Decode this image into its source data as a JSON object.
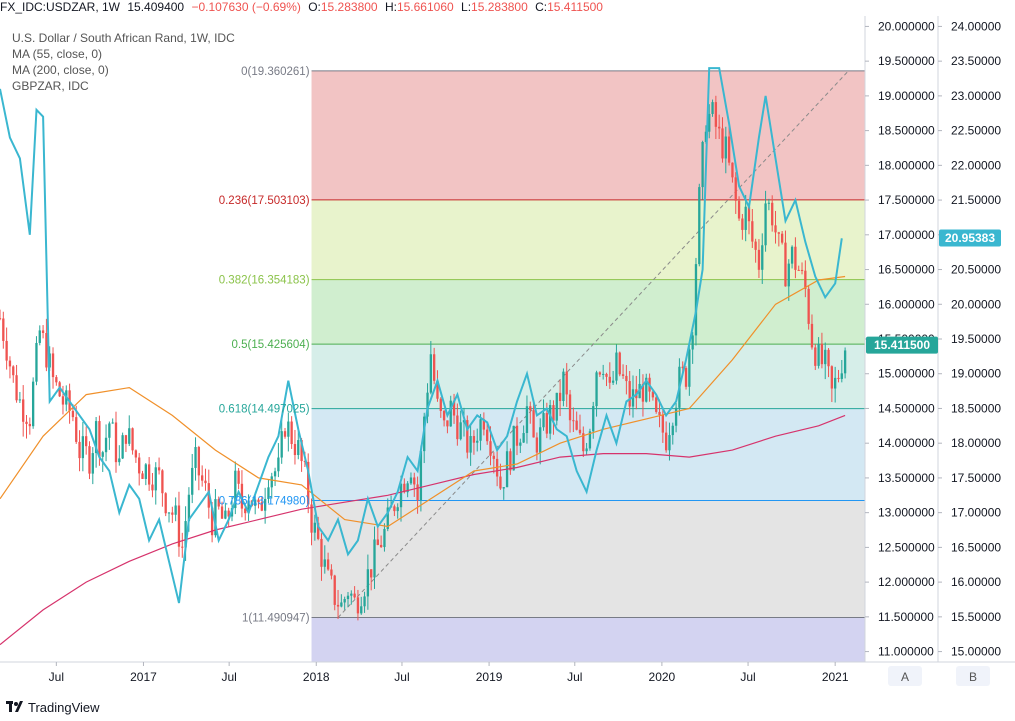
{
  "header": {
    "symbol": "FX_IDC:USDZAR, 1W",
    "last": "15.409400",
    "change": "−0.107630 (−0.69%)",
    "o_label": "O:",
    "o": "15.283800",
    "h_label": "H:",
    "h": "15.661060",
    "l_label": "L:",
    "l": "15.283800",
    "c_label": "C:",
    "c": "15.411500"
  },
  "legend": {
    "title": "U.S. Dollar / South African Rand, 1W, IDC",
    "ma55": "MA (55, close, 0)",
    "ma200": "MA (200, close, 0)",
    "compare": "GBPZAR, IDC"
  },
  "footer": {
    "brand": "TradingView"
  },
  "axis_buttons": {
    "a": "A",
    "b": "B"
  },
  "colors": {
    "up": "#26a69a",
    "down": "#ef5350",
    "ma55": "#f0902a",
    "ma200": "#d6336c",
    "compare": "#3ab7d0",
    "last_price_badge": "#26a69a",
    "compare_badge": "#3ab7d0"
  },
  "chart_data": {
    "type": "candlestick",
    "title": "U.S. Dollar / South African Rand, 1W, IDC",
    "x_ticks": [
      "Jul",
      "2017",
      "Jul",
      "2018",
      "Jul",
      "2019",
      "Jul",
      "2020",
      "Jul",
      "2021"
    ],
    "x_tick_dates": [
      "2016-07-01",
      "2017-01-01",
      "2017-07-01",
      "2018-01-01",
      "2018-07-01",
      "2019-01-01",
      "2019-07-01",
      "2020-01-01",
      "2020-07-01",
      "2021-01-01"
    ],
    "y_left_ticks": [
      "20.000000",
      "19.500000",
      "19.000000",
      "18.500000",
      "18.000000",
      "17.500000",
      "17.000000",
      "16.500000",
      "16.000000",
      "15.500000",
      "15.000000",
      "14.500000",
      "14.000000",
      "13.500000",
      "13.000000",
      "12.500000",
      "12.000000",
      "11.500000",
      "11.000000"
    ],
    "y_right_ticks": [
      "24.00000",
      "23.50000",
      "23.00000",
      "22.50000",
      "22.00000",
      "21.50000",
      "21.00000",
      "20.50000",
      "20.00000",
      "19.50000",
      "19.00000",
      "18.50000",
      "18.00000",
      "17.50000",
      "17.00000",
      "16.50000",
      "16.00000",
      "15.50000",
      "15.00000"
    ],
    "ylim_left": [
      10.85,
      20.15
    ],
    "ylim_right": [
      14.85,
      24.15
    ],
    "last_price_badge": "15.411500",
    "compare_badge": "20.95383",
    "fibonacci": [
      {
        "label": "0(19.360261)",
        "value": 19.360261,
        "line": "#787b86",
        "fill": "#f2c4c4"
      },
      {
        "label": "0.236(17.503103)",
        "value": 17.503103,
        "line": "#c62828",
        "fill": "#e8f3cc"
      },
      {
        "label": "0.382(16.354183)",
        "value": 16.354183,
        "line": "#8bc34a",
        "fill": "#d0eecf"
      },
      {
        "label": "0.5(15.425604)",
        "value": 15.425604,
        "line": "#4caf50",
        "fill": "#d6eee9"
      },
      {
        "label": "0.618(14.497025)",
        "value": 14.497025,
        "line": "#26a69a",
        "fill": "#d3e8f3"
      },
      {
        "label": "0.786(13.174980)",
        "value": 13.17498,
        "line": "#2196f3",
        "fill": "#e4e4e4"
      },
      {
        "label": "1(11.490947)",
        "value": 11.490947,
        "line": "#787b86",
        "fill": "#d3d3f1"
      }
    ],
    "fib_start_date": "2017-12-22",
    "trend_line": {
      "from": [
        "2018-02-16",
        11.49
      ],
      "to": [
        "2021-01-29",
        19.36
      ]
    },
    "usdzar_path": [
      [
        "2016-03-04",
        15.8
      ],
      [
        "2016-03-18",
        15.4
      ],
      [
        "2016-04-01",
        14.9
      ],
      [
        "2016-04-15",
        14.6
      ],
      [
        "2016-05-06",
        14.4
      ],
      [
        "2016-05-27",
        15.6
      ],
      [
        "2016-06-10",
        15.3
      ],
      [
        "2016-06-24",
        14.9
      ],
      [
        "2016-07-15",
        14.6
      ],
      [
        "2016-08-05",
        14.4
      ],
      [
        "2016-08-19",
        13.9
      ],
      [
        "2016-09-09",
        13.8
      ],
      [
        "2016-09-23",
        14.2
      ],
      [
        "2016-10-07",
        13.9
      ],
      [
        "2016-10-21",
        14.3
      ],
      [
        "2016-11-11",
        13.7
      ],
      [
        "2016-11-25",
        14.2
      ],
      [
        "2016-12-09",
        13.9
      ],
      [
        "2016-12-23",
        13.7
      ],
      [
        "2017-01-13",
        13.6
      ],
      [
        "2017-02-03",
        13.5
      ],
      [
        "2017-02-17",
        13.2
      ],
      [
        "2017-03-10",
        12.9
      ],
      [
        "2017-03-24",
        12.5
      ],
      [
        "2017-04-07",
        13.3
      ],
      [
        "2017-04-21",
        13.7
      ],
      [
        "2017-05-12",
        13.3
      ],
      [
        "2017-05-26",
        12.9
      ],
      [
        "2017-06-09",
        13.0
      ],
      [
        "2017-06-23",
        12.8
      ],
      [
        "2017-07-14",
        13.4
      ],
      [
        "2017-07-28",
        13.1
      ],
      [
        "2017-08-11",
        13.3
      ],
      [
        "2017-09-01",
        12.95
      ],
      [
        "2017-09-22",
        13.6
      ],
      [
        "2017-10-13",
        13.6
      ],
      [
        "2017-10-27",
        14.3
      ],
      [
        "2017-11-10",
        14.1
      ],
      [
        "2017-11-24",
        13.9
      ],
      [
        "2017-12-08",
        13.5
      ],
      [
        "2017-12-22",
        12.9
      ],
      [
        "2018-01-12",
        12.4
      ],
      [
        "2018-01-26",
        12.0
      ],
      [
        "2018-02-09",
        11.8
      ],
      [
        "2018-02-23",
        11.65
      ],
      [
        "2018-03-09",
        11.9
      ],
      [
        "2018-03-23",
        11.7
      ],
      [
        "2018-04-06",
        11.9
      ],
      [
        "2018-04-20",
        12.1
      ],
      [
        "2018-05-11",
        12.5
      ],
      [
        "2018-05-25",
        12.7
      ],
      [
        "2018-06-08",
        13.0
      ],
      [
        "2018-06-22",
        13.3
      ],
      [
        "2018-07-06",
        13.5
      ],
      [
        "2018-07-20",
        13.7
      ],
      [
        "2018-08-03",
        13.2
      ],
      [
        "2018-08-17",
        14.4
      ],
      [
        "2018-08-31",
        15.3
      ],
      [
        "2018-09-14",
        14.5
      ],
      [
        "2018-09-28",
        14.2
      ],
      [
        "2018-10-12",
        14.5
      ],
      [
        "2018-10-26",
        14.3
      ],
      [
        "2018-11-09",
        14.1
      ],
      [
        "2018-11-23",
        13.9
      ],
      [
        "2018-12-07",
        14.2
      ],
      [
        "2018-12-21",
        14.4
      ],
      [
        "2019-01-11",
        13.9
      ],
      [
        "2019-01-25",
        13.4
      ],
      [
        "2019-02-08",
        13.7
      ],
      [
        "2019-02-22",
        14.0
      ],
      [
        "2019-03-08",
        14.2
      ],
      [
        "2019-03-22",
        14.5
      ],
      [
        "2019-04-05",
        14.0
      ],
      [
        "2019-04-19",
        14.1
      ],
      [
        "2019-05-10",
        14.4
      ],
      [
        "2019-05-24",
        14.5
      ],
      [
        "2019-06-07",
        14.9
      ],
      [
        "2019-06-21",
        14.3
      ],
      [
        "2019-07-05",
        14.1
      ],
      [
        "2019-07-19",
        13.9
      ],
      [
        "2019-08-02",
        14.3
      ],
      [
        "2019-08-16",
        15.1
      ],
      [
        "2019-08-30",
        15.2
      ],
      [
        "2019-09-13",
        14.7
      ],
      [
        "2019-09-27",
        15.1
      ],
      [
        "2019-10-11",
        14.9
      ],
      [
        "2019-10-25",
        14.6
      ],
      [
        "2019-11-08",
        14.7
      ],
      [
        "2019-11-22",
        14.8
      ],
      [
        "2019-12-06",
        14.6
      ],
      [
        "2019-12-20",
        14.3
      ],
      [
        "2020-01-10",
        14.1
      ],
      [
        "2020-01-24",
        14.5
      ],
      [
        "2020-02-07",
        14.9
      ],
      [
        "2020-02-21",
        15.0
      ],
      [
        "2020-03-06",
        15.8
      ],
      [
        "2020-03-20",
        17.5
      ],
      [
        "2020-04-03",
        18.7
      ],
      [
        "2020-04-17",
        18.7
      ],
      [
        "2020-05-01",
        18.4
      ],
      [
        "2020-05-15",
        18.2
      ],
      [
        "2020-05-29",
        17.7
      ],
      [
        "2020-06-12",
        17.2
      ],
      [
        "2020-06-26",
        17.3
      ],
      [
        "2020-07-10",
        16.9
      ],
      [
        "2020-07-24",
        16.6
      ],
      [
        "2020-08-07",
        17.5
      ],
      [
        "2020-08-21",
        17.3
      ],
      [
        "2020-09-04",
        16.8
      ],
      [
        "2020-09-18",
        16.5
      ],
      [
        "2020-10-02",
        16.7
      ],
      [
        "2020-10-16",
        16.5
      ],
      [
        "2020-10-30",
        16.2
      ],
      [
        "2020-11-13",
        15.5
      ],
      [
        "2020-11-27",
        15.2
      ],
      [
        "2020-12-11",
        15.1
      ],
      [
        "2020-12-25",
        14.7
      ],
      [
        "2021-01-08",
        15.0
      ],
      [
        "2021-01-22",
        15.41
      ]
    ],
    "series": [
      {
        "name": "MA (55, close, 0)",
        "values": [
          [
            "2016-03-04",
            13.2
          ],
          [
            "2016-06-03",
            14.1
          ],
          [
            "2016-09-02",
            14.7
          ],
          [
            "2016-12-02",
            14.8
          ],
          [
            "2017-03-03",
            14.4
          ],
          [
            "2017-06-02",
            13.9
          ],
          [
            "2017-09-01",
            13.5
          ],
          [
            "2017-12-01",
            13.4
          ],
          [
            "2018-03-02",
            12.9
          ],
          [
            "2018-06-01",
            12.8
          ],
          [
            "2018-08-31",
            13.2
          ],
          [
            "2018-11-30",
            13.6
          ],
          [
            "2019-03-01",
            13.7
          ],
          [
            "2019-05-31",
            14.0
          ],
          [
            "2019-08-30",
            14.2
          ],
          [
            "2019-11-29",
            14.35
          ],
          [
            "2020-02-28",
            14.5
          ],
          [
            "2020-05-29",
            15.2
          ],
          [
            "2020-08-28",
            16.0
          ],
          [
            "2020-11-27",
            16.35
          ],
          [
            "2021-01-22",
            16.4
          ]
        ]
      },
      {
        "name": "MA (200, close, 0)",
        "values": [
          [
            "2016-03-04",
            11.1
          ],
          [
            "2016-06-03",
            11.6
          ],
          [
            "2016-09-02",
            12.0
          ],
          [
            "2016-12-02",
            12.3
          ],
          [
            "2017-03-03",
            12.55
          ],
          [
            "2017-06-02",
            12.75
          ],
          [
            "2017-09-01",
            12.9
          ],
          [
            "2017-12-01",
            13.05
          ],
          [
            "2018-03-02",
            13.15
          ],
          [
            "2018-06-01",
            13.25
          ],
          [
            "2018-08-31",
            13.4
          ],
          [
            "2018-11-30",
            13.55
          ],
          [
            "2019-03-01",
            13.65
          ],
          [
            "2019-05-31",
            13.8
          ],
          [
            "2019-08-30",
            13.85
          ],
          [
            "2019-11-29",
            13.85
          ],
          [
            "2020-02-28",
            13.8
          ],
          [
            "2020-05-29",
            13.9
          ],
          [
            "2020-08-28",
            14.1
          ],
          [
            "2020-11-27",
            14.25
          ],
          [
            "2021-01-22",
            14.4
          ]
        ]
      },
      {
        "name": "GBPZAR, IDC",
        "axis": "right",
        "values": [
          [
            "2016-03-04",
            23.1
          ],
          [
            "2016-03-25",
            22.4
          ],
          [
            "2016-04-15",
            22.1
          ],
          [
            "2016-05-06",
            21.0
          ],
          [
            "2016-05-20",
            22.8
          ],
          [
            "2016-06-03",
            22.7
          ],
          [
            "2016-06-17",
            18.6
          ],
          [
            "2016-07-08",
            18.8
          ],
          [
            "2016-07-29",
            18.6
          ],
          [
            "2016-08-19",
            18.4
          ],
          [
            "2016-09-09",
            18.2
          ],
          [
            "2016-09-30",
            17.8
          ],
          [
            "2016-10-21",
            17.6
          ],
          [
            "2016-11-11",
            17.0
          ],
          [
            "2016-12-02",
            17.4
          ],
          [
            "2016-12-23",
            17.2
          ],
          [
            "2017-01-13",
            16.6
          ],
          [
            "2017-02-03",
            16.9
          ],
          [
            "2017-02-24",
            16.3
          ],
          [
            "2017-03-17",
            15.7
          ],
          [
            "2017-04-07",
            16.9
          ],
          [
            "2017-04-28",
            17.1
          ],
          [
            "2017-05-19",
            17.3
          ],
          [
            "2017-06-09",
            16.6
          ],
          [
            "2017-06-30",
            16.9
          ],
          [
            "2017-07-21",
            17.3
          ],
          [
            "2017-08-11",
            17.0
          ],
          [
            "2017-09-01",
            17.4
          ],
          [
            "2017-09-22",
            17.8
          ],
          [
            "2017-10-13",
            18.1
          ],
          [
            "2017-11-03",
            18.9
          ],
          [
            "2017-11-24",
            18.2
          ],
          [
            "2017-12-15",
            17.6
          ],
          [
            "2018-01-05",
            16.8
          ],
          [
            "2018-01-26",
            16.6
          ],
          [
            "2018-02-16",
            16.9
          ],
          [
            "2018-03-09",
            16.4
          ],
          [
            "2018-03-30",
            16.6
          ],
          [
            "2018-04-20",
            17.2
          ],
          [
            "2018-05-11",
            16.8
          ],
          [
            "2018-06-01",
            17.0
          ],
          [
            "2018-06-22",
            17.3
          ],
          [
            "2018-07-13",
            17.8
          ],
          [
            "2018-08-03",
            17.6
          ],
          [
            "2018-08-24",
            18.5
          ],
          [
            "2018-09-14",
            18.9
          ],
          [
            "2018-10-05",
            18.4
          ],
          [
            "2018-10-26",
            18.7
          ],
          [
            "2018-11-16",
            18.2
          ],
          [
            "2018-12-07",
            18.4
          ],
          [
            "2018-12-28",
            18.3
          ],
          [
            "2019-01-18",
            17.9
          ],
          [
            "2019-02-08",
            18.1
          ],
          [
            "2019-03-01",
            18.6
          ],
          [
            "2019-03-22",
            19.0
          ],
          [
            "2019-04-12",
            18.4
          ],
          [
            "2019-05-03",
            18.5
          ],
          [
            "2019-05-24",
            18.2
          ],
          [
            "2019-06-14",
            18.1
          ],
          [
            "2019-07-05",
            17.6
          ],
          [
            "2019-07-26",
            17.3
          ],
          [
            "2019-08-16",
            17.9
          ],
          [
            "2019-09-06",
            18.4
          ],
          [
            "2019-09-27",
            18.0
          ],
          [
            "2019-10-18",
            18.6
          ],
          [
            "2019-11-08",
            18.7
          ],
          [
            "2019-11-29",
            18.9
          ],
          [
            "2019-12-20",
            18.7
          ],
          [
            "2020-01-10",
            18.4
          ],
          [
            "2020-01-31",
            18.6
          ],
          [
            "2020-02-21",
            19.2
          ],
          [
            "2020-03-13",
            19.9
          ],
          [
            "2020-03-27",
            20.5
          ],
          [
            "2020-04-10",
            23.4
          ],
          [
            "2020-05-01",
            23.4
          ],
          [
            "2020-05-22",
            22.6
          ],
          [
            "2020-06-12",
            21.7
          ],
          [
            "2020-07-03",
            21.4
          ],
          [
            "2020-07-24",
            22.4
          ],
          [
            "2020-08-07",
            23.0
          ],
          [
            "2020-08-28",
            22.1
          ],
          [
            "2020-09-18",
            21.2
          ],
          [
            "2020-10-09",
            21.5
          ],
          [
            "2020-10-30",
            20.9
          ],
          [
            "2020-11-20",
            20.4
          ],
          [
            "2020-12-11",
            20.1
          ],
          [
            "2021-01-01",
            20.3
          ],
          [
            "2021-01-15",
            20.95
          ]
        ]
      }
    ],
    "legend_position": "top-left",
    "grid": false
  }
}
